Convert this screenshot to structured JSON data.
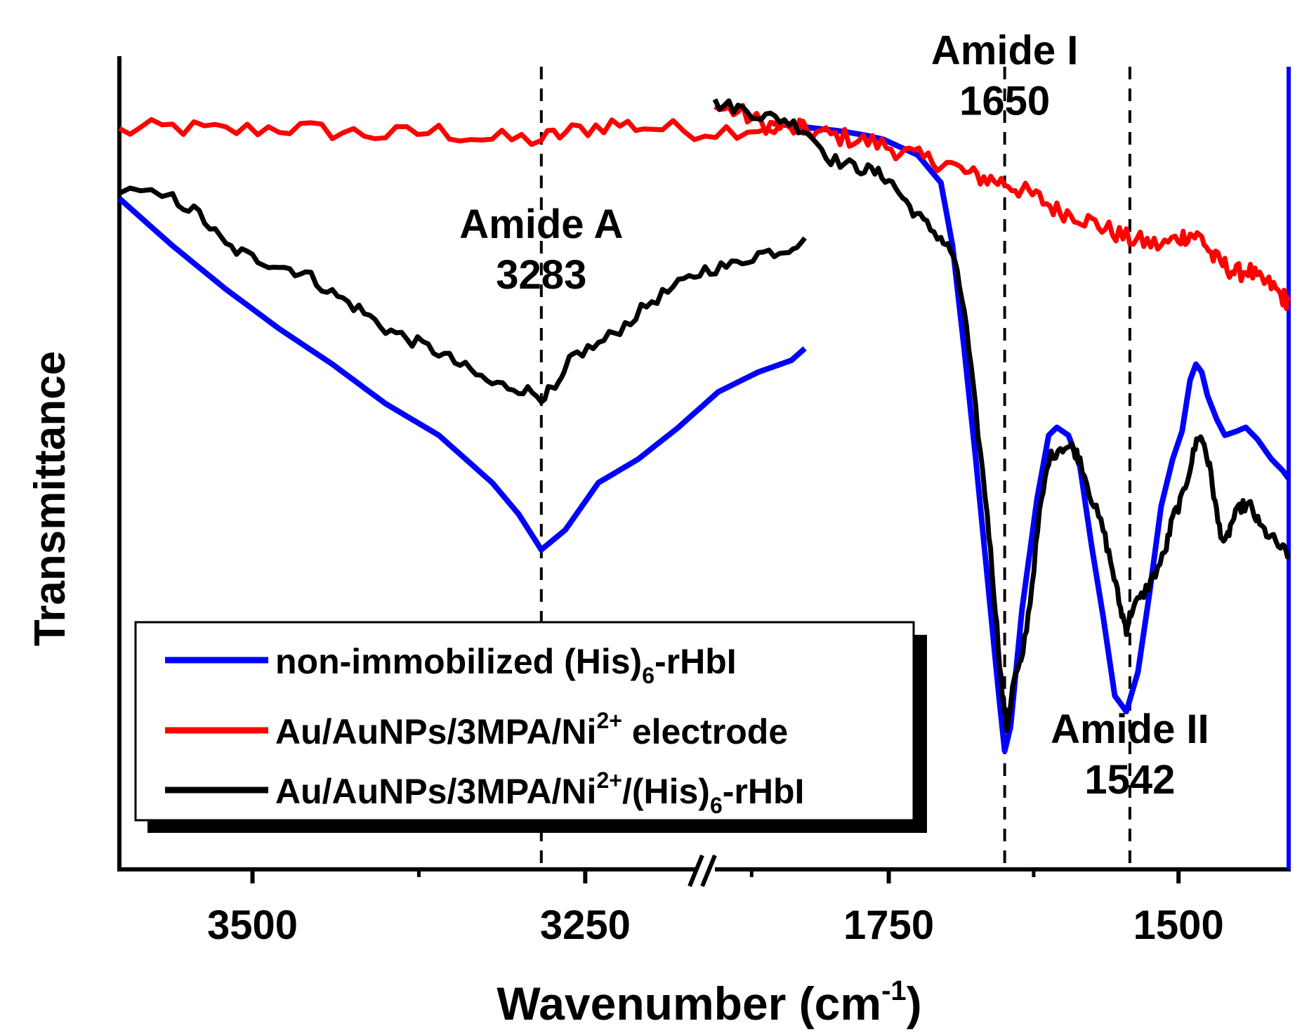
{
  "chart_data": {
    "type": "line",
    "title": "",
    "xlabel": "Wavenumber (cm",
    "xlabel_sup": "-1",
    "xlabel_close": ")",
    "ylabel": "Transmittance",
    "x_axis_break": true,
    "y_units": "arbitrary (normalized transmittance, 0–1)",
    "ylim": [
      0,
      1
    ],
    "panels": [
      {
        "name": "left",
        "xlim": [
          3600,
          3170
        ],
        "ticks_major": [
          3500,
          3250
        ],
        "ticks_minor": [
          3375,
          3125
        ],
        "tick_labels": [
          "3500",
          "3250"
        ]
      },
      {
        "name": "right",
        "xlim": [
          1900,
          1405
        ],
        "ticks_major": [
          1750,
          1500
        ],
        "ticks_minor": [
          1625
        ],
        "tick_labels": [
          "1750",
          "1500"
        ]
      }
    ],
    "series": [
      {
        "name": "non-immobilized (His)",
        "sub": "6",
        "suffix": "-rHbI",
        "color": "#0000ff",
        "noise": 0,
        "left": [
          [
            3600,
            0.85
          ],
          [
            3560,
            0.79
          ],
          [
            3520,
            0.735
          ],
          [
            3480,
            0.685
          ],
          [
            3440,
            0.64
          ],
          [
            3400,
            0.59
          ],
          [
            3360,
            0.55
          ],
          [
            3320,
            0.49
          ],
          [
            3300,
            0.45
          ],
          [
            3283,
            0.405
          ],
          [
            3265,
            0.43
          ],
          [
            3240,
            0.49
          ],
          [
            3210,
            0.52
          ],
          [
            3180,
            0.56
          ],
          [
            3150,
            0.605
          ],
          [
            3120,
            0.63
          ],
          [
            3095,
            0.645
          ],
          [
            3085,
            0.66
          ]
        ],
        "right": [
          [
            1850,
            0.945
          ],
          [
            1820,
            0.94
          ],
          [
            1790,
            0.935
          ],
          [
            1770,
            0.93
          ],
          [
            1755,
            0.925
          ],
          [
            1740,
            0.915
          ],
          [
            1725,
            0.905
          ],
          [
            1705,
            0.87
          ],
          [
            1695,
            0.79
          ],
          [
            1685,
            0.66
          ],
          [
            1675,
            0.52
          ],
          [
            1665,
            0.37
          ],
          [
            1655,
            0.22
          ],
          [
            1650,
            0.15
          ],
          [
            1645,
            0.18
          ],
          [
            1635,
            0.33
          ],
          [
            1622,
            0.47
          ],
          [
            1612,
            0.55
          ],
          [
            1605,
            0.56
          ],
          [
            1595,
            0.55
          ],
          [
            1585,
            0.51
          ],
          [
            1575,
            0.41
          ],
          [
            1565,
            0.32
          ],
          [
            1555,
            0.22
          ],
          [
            1545,
            0.2
          ],
          [
            1535,
            0.25
          ],
          [
            1525,
            0.35
          ],
          [
            1515,
            0.46
          ],
          [
            1505,
            0.52
          ],
          [
            1497,
            0.555
          ],
          [
            1490,
            0.62
          ],
          [
            1485,
            0.64
          ],
          [
            1480,
            0.63
          ],
          [
            1475,
            0.6
          ],
          [
            1467,
            0.57
          ],
          [
            1460,
            0.55
          ],
          [
            1450,
            0.555
          ],
          [
            1442,
            0.56
          ],
          [
            1432,
            0.545
          ],
          [
            1420,
            0.52
          ],
          [
            1410,
            0.505
          ],
          [
            1405,
            0.495
          ]
        ]
      },
      {
        "name": "Au/AuNPs/3MPA/Ni",
        "sup": "2+",
        "suffix": " electrode",
        "color": "#ff0000",
        "noise": 0.012,
        "left": [
          [
            3600,
            0.935
          ],
          [
            3560,
            0.94
          ],
          [
            3520,
            0.935
          ],
          [
            3480,
            0.94
          ],
          [
            3440,
            0.935
          ],
          [
            3400,
            0.93
          ],
          [
            3360,
            0.935
          ],
          [
            3320,
            0.925
          ],
          [
            3283,
            0.925
          ],
          [
            3260,
            0.935
          ],
          [
            3230,
            0.945
          ],
          [
            3200,
            0.94
          ],
          [
            3160,
            0.935
          ],
          [
            3120,
            0.94
          ],
          [
            3090,
            0.94
          ],
          [
            3085,
            0.945
          ]
        ],
        "right": [
          [
            1900,
            0.965
          ],
          [
            1880,
            0.96
          ],
          [
            1860,
            0.945
          ],
          [
            1840,
            0.94
          ],
          [
            1820,
            0.935
          ],
          [
            1800,
            0.93
          ],
          [
            1780,
            0.925
          ],
          [
            1760,
            0.92
          ],
          [
            1740,
            0.91
          ],
          [
            1720,
            0.9
          ],
          [
            1700,
            0.895
          ],
          [
            1680,
            0.88
          ],
          [
            1665,
            0.875
          ],
          [
            1650,
            0.87
          ],
          [
            1635,
            0.86
          ],
          [
            1620,
            0.85
          ],
          [
            1605,
            0.835
          ],
          [
            1590,
            0.83
          ],
          [
            1575,
            0.82
          ],
          [
            1560,
            0.81
          ],
          [
            1545,
            0.8
          ],
          [
            1530,
            0.795
          ],
          [
            1515,
            0.79
          ],
          [
            1500,
            0.8
          ],
          [
            1490,
            0.805
          ],
          [
            1480,
            0.8
          ],
          [
            1470,
            0.775
          ],
          [
            1460,
            0.765
          ],
          [
            1450,
            0.755
          ],
          [
            1440,
            0.76
          ],
          [
            1430,
            0.745
          ],
          [
            1420,
            0.74
          ],
          [
            1410,
            0.725
          ],
          [
            1405,
            0.72
          ]
        ]
      },
      {
        "name": "Au/AuNPs/3MPA/Ni",
        "sup": "2+",
        "mid": "/(His)",
        "sub": "6",
        "suffix": "-rHbI",
        "color": "#000000",
        "noise": 0.008,
        "left": [
          [
            3600,
            0.86
          ],
          [
            3560,
            0.85
          ],
          [
            3540,
            0.83
          ],
          [
            3520,
            0.79
          ],
          [
            3500,
            0.775
          ],
          [
            3480,
            0.765
          ],
          [
            3460,
            0.755
          ],
          [
            3440,
            0.73
          ],
          [
            3420,
            0.71
          ],
          [
            3400,
            0.685
          ],
          [
            3380,
            0.67
          ],
          [
            3360,
            0.655
          ],
          [
            3340,
            0.635
          ],
          [
            3320,
            0.615
          ],
          [
            3300,
            0.61
          ],
          [
            3283,
            0.6
          ],
          [
            3270,
            0.61
          ],
          [
            3260,
            0.65
          ],
          [
            3240,
            0.665
          ],
          [
            3220,
            0.69
          ],
          [
            3200,
            0.72
          ],
          [
            3180,
            0.74
          ],
          [
            3160,
            0.76
          ],
          [
            3140,
            0.765
          ],
          [
            3120,
            0.78
          ],
          [
            3100,
            0.785
          ],
          [
            3085,
            0.8
          ]
        ],
        "right": [
          [
            1900,
            0.97
          ],
          [
            1880,
            0.965
          ],
          [
            1860,
            0.955
          ],
          [
            1840,
            0.95
          ],
          [
            1820,
            0.935
          ],
          [
            1800,
            0.9
          ],
          [
            1780,
            0.89
          ],
          [
            1765,
            0.885
          ],
          [
            1750,
            0.875
          ],
          [
            1735,
            0.845
          ],
          [
            1720,
            0.82
          ],
          [
            1705,
            0.8
          ],
          [
            1695,
            0.78
          ],
          [
            1685,
            0.71
          ],
          [
            1675,
            0.58
          ],
          [
            1665,
            0.45
          ],
          [
            1658,
            0.33
          ],
          [
            1652,
            0.22
          ],
          [
            1648,
            0.18
          ],
          [
            1642,
            0.24
          ],
          [
            1636,
            0.26
          ],
          [
            1628,
            0.34
          ],
          [
            1620,
            0.45
          ],
          [
            1612,
            0.52
          ],
          [
            1602,
            0.535
          ],
          [
            1592,
            0.535
          ],
          [
            1585,
            0.52
          ],
          [
            1575,
            0.47
          ],
          [
            1565,
            0.43
          ],
          [
            1557,
            0.38
          ],
          [
            1550,
            0.33
          ],
          [
            1545,
            0.305
          ],
          [
            1540,
            0.33
          ],
          [
            1532,
            0.345
          ],
          [
            1522,
            0.37
          ],
          [
            1512,
            0.4
          ],
          [
            1505,
            0.445
          ],
          [
            1497,
            0.47
          ],
          [
            1490,
            0.51
          ],
          [
            1483,
            0.55
          ],
          [
            1478,
            0.54
          ],
          [
            1472,
            0.5
          ],
          [
            1466,
            0.44
          ],
          [
            1460,
            0.41
          ],
          [
            1454,
            0.44
          ],
          [
            1446,
            0.46
          ],
          [
            1438,
            0.46
          ],
          [
            1430,
            0.435
          ],
          [
            1420,
            0.42
          ],
          [
            1410,
            0.405
          ],
          [
            1405,
            0.4
          ]
        ]
      }
    ],
    "reference_lines": [
      {
        "panel": "left",
        "x": 3283
      },
      {
        "panel": "right",
        "x": 1650
      },
      {
        "panel": "right",
        "x": 1542
      }
    ],
    "annotations": [
      {
        "panel": "left",
        "x": 3283,
        "level": 0.8,
        "line1": "Amide A",
        "line2": "3283"
      },
      {
        "panel": "right",
        "x": 1650,
        "level": 1.02,
        "line1": "Amide I",
        "line2": "1650"
      },
      {
        "panel": "right",
        "x": 1542,
        "level": 0.16,
        "line1": "Amide II",
        "line2": "1542"
      }
    ],
    "legend": {
      "position": "bottom-left",
      "entries": [
        {
          "line1": "non-immobilized (His)",
          "sub": "6",
          "tail": "-rHbI",
          "color": "#0000ff"
        },
        {
          "line1": "Au/AuNPs/3MPA/Ni",
          "sup": "2+",
          "tail": " electrode",
          "color": "#ff0000"
        },
        {
          "line1": "Au/AuNPs/3MPA/Ni",
          "sup": "2+",
          "mid": "/(His)",
          "sub": "6",
          "tail": "-rHbI",
          "color": "#000000"
        }
      ]
    }
  }
}
